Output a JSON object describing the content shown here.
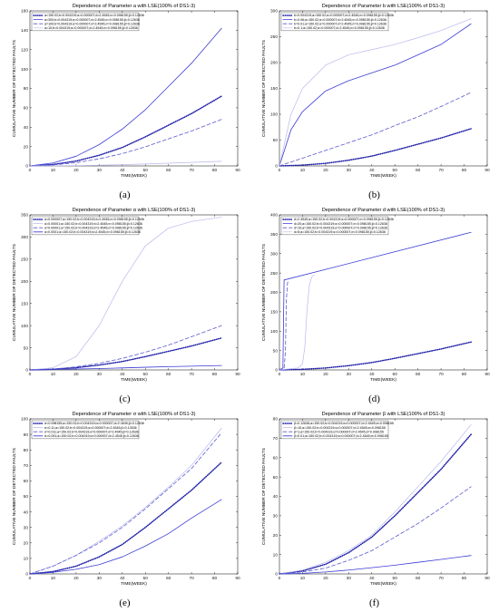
{
  "panels": [
    {
      "label": "(a)",
      "title": "Dependence of Parameter a with LSE(100% of DS1-3)"
    },
    {
      "label": "(b)",
      "title": "Dependence of Parameter b with LSE(100% of DS1-3)"
    },
    {
      "label": "(c)",
      "title": "Dependence of Parameter α with LSE(100% of DS1-3)"
    },
    {
      "label": "(d)",
      "title": "Dependence of Parameter d with LSE(100% of DS1-3)"
    },
    {
      "label": "(e)",
      "title": "Dependence of Parameter σ with LSE(100% of DS1-3)"
    },
    {
      "label": "(f)",
      "title": "Dependence of Parameter β with LSE(100% of DS1-3)"
    }
  ],
  "chart_data": [
    {
      "type": "line",
      "title": "Dependence of Parameter a with LSE(100% of DS1-3)",
      "xlabel": "TIME(WEEK)",
      "ylabel": "CUMULATIVE NUMBER OF DETECTED FAULTS",
      "xlim": [
        0,
        90
      ],
      "ylim": [
        0,
        160
      ],
      "xticks": [
        0,
        10,
        20,
        30,
        40,
        50,
        60,
        70,
        80,
        90
      ],
      "yticks": [
        0,
        20,
        40,
        60,
        80,
        100,
        120,
        140,
        160
      ],
      "legend_position": "top-left",
      "grid": false,
      "series": [
        {
          "name": "a=150.02;b=0.004319;α=0.000007;d=2.4545;σ=0.098155;β=0.12636",
          "style": "dotted",
          "color": "#1a1aa6",
          "x": [
            0,
            10,
            20,
            30,
            40,
            50,
            60,
            70,
            83
          ],
          "y": [
            0,
            1.5,
            5,
            11,
            19,
            30,
            42,
            54,
            72
          ]
        },
        {
          "name": "a=300;b=0.004319;α=0.000007;d=2.4545;σ=0.098155;β=0.12636",
          "style": "solid",
          "color": "#3b3bd6",
          "x": [
            0,
            10,
            20,
            30,
            40,
            50,
            60,
            70,
            83
          ],
          "y": [
            0,
            3,
            10,
            22,
            38,
            58,
            82,
            106,
            142
          ]
        },
        {
          "name": "a=100;b=0.004319;α=0.000007;d=2.4545;σ=0.098155;β=0.12636",
          "style": "dashed",
          "color": "#5a5ad0",
          "x": [
            0,
            10,
            20,
            30,
            40,
            50,
            60,
            70,
            83
          ],
          "y": [
            0,
            1,
            3.3,
            7.3,
            12.7,
            19.7,
            28,
            36,
            48
          ]
        },
        {
          "name": "a=10;b=0.004319;α=0.000007;d=2.4545;σ=0.098155;β=0.12636",
          "style": "faint",
          "color": "#b8b8ee",
          "x": [
            0,
            10,
            20,
            30,
            40,
            50,
            60,
            70,
            83
          ],
          "y": [
            0,
            0.1,
            0.3,
            0.7,
            1.3,
            2,
            2.8,
            3.6,
            4.8
          ]
        }
      ]
    },
    {
      "type": "line",
      "title": "Dependence of Parameter b with LSE(100% of DS1-3)",
      "xlabel": "TIME(WEEK)",
      "ylabel": "CUMULATIVE NUMBER OF DETECTED FAULTS",
      "xlim": [
        0,
        90
      ],
      "ylim": [
        0,
        300
      ],
      "xticks": [
        0,
        10,
        20,
        30,
        40,
        50,
        60,
        70,
        80,
        90
      ],
      "yticks": [
        0,
        50,
        100,
        150,
        200,
        250,
        300
      ],
      "legend_position": "top-left",
      "grid": false,
      "series": [
        {
          "name": "b=0.004319;a=150.02;α=0.000007;d=2.4545;σ=0.098155;β=0.12636",
          "style": "dotted",
          "color": "#1a1aa6",
          "x": [
            0,
            10,
            20,
            30,
            40,
            50,
            60,
            70,
            83
          ],
          "y": [
            0,
            1.5,
            5,
            11,
            19,
            30,
            42,
            54,
            72
          ]
        },
        {
          "name": "b=0.06;a=150.02;α=0.000007;d=2.4545;σ=0.098155;β=0.12636",
          "style": "solid",
          "color": "#3b3bd6",
          "x": [
            0,
            5,
            10,
            20,
            30,
            40,
            50,
            60,
            70,
            83
          ],
          "y": [
            0,
            70,
            105,
            145,
            165,
            180,
            195,
            215,
            235,
            275
          ]
        },
        {
          "name": "b=0.01;a=150.02;α=0.000007;d=2.4545;σ=0.098155;β=0.12636",
          "style": "dashed",
          "color": "#5a5ad0",
          "x": [
            0,
            10,
            20,
            30,
            40,
            50,
            60,
            70,
            83
          ],
          "y": [
            0,
            15,
            30,
            45,
            60,
            78,
            95,
            115,
            142
          ]
        },
        {
          "name": "b=0.1;a=150.02;α=0.000007;d=2.4545;σ=0.098155;β=0.12636",
          "style": "faint",
          "color": "#b8b8ee",
          "x": [
            0,
            5,
            10,
            20,
            30,
            40,
            50,
            60,
            70,
            83
          ],
          "y": [
            0,
            100,
            150,
            195,
            215,
            225,
            235,
            248,
            262,
            285
          ]
        }
      ]
    },
    {
      "type": "line",
      "title": "Dependence of Parameter α with LSE(100% of DS1-3)",
      "xlabel": "TIME(WEEK)",
      "ylabel": "CUMULATIVE NUMBER OF DETECTED FAULTS",
      "xlim": [
        0,
        90
      ],
      "ylim": [
        0,
        350
      ],
      "xticks": [
        0,
        10,
        20,
        30,
        40,
        50,
        60,
        70,
        80,
        90
      ],
      "yticks": [
        0,
        50,
        100,
        150,
        200,
        250,
        300,
        350
      ],
      "legend_position": "top-left",
      "grid": false,
      "series": [
        {
          "name": "α=0.000007;a=150.02;b=0.004319;d=2.4545;σ=0.098155;β=0.12636",
          "style": "dotted",
          "color": "#1a1aa6",
          "x": [
            0,
            10,
            20,
            30,
            40,
            50,
            60,
            70,
            83
          ],
          "y": [
            0,
            1.5,
            5,
            11,
            19,
            30,
            42,
            54,
            72
          ]
        },
        {
          "name": "α=0.00001;a=150.02;b=0.004319;d=2.4545;σ=0.098155;β=0.12636",
          "style": "faint",
          "color": "#b8b8ee",
          "x": [
            0,
            10,
            20,
            30,
            40,
            50,
            60,
            70,
            83
          ],
          "y": [
            0,
            5,
            30,
            100,
            200,
            280,
            320,
            335,
            345
          ]
        },
        {
          "name": "α=0.00001;a=150.02;b=0.004319;d=2.4545;σ=0.098155;β=0.12636",
          "style": "dashed",
          "color": "#5a5ad0",
          "x": [
            0,
            10,
            20,
            30,
            40,
            50,
            60,
            70,
            83
          ],
          "y": [
            0,
            2,
            7,
            15,
            26,
            40,
            56,
            75,
            100
          ]
        },
        {
          "name": "α=0.0001;a=150.02;b=0.004319;d=2.4545;σ=0.098155;β=0.12636",
          "style": "solid",
          "color": "#3b3bd6",
          "x": [
            0,
            10,
            20,
            30,
            40,
            50,
            60,
            70,
            83
          ],
          "y": [
            0,
            1,
            2,
            3,
            4.5,
            6,
            7.5,
            8.5,
            10
          ]
        }
      ]
    },
    {
      "type": "line",
      "title": "Dependence of Parameter d with LSE(100% of DS1-3)",
      "xlabel": "TIME(WEEK)",
      "ylabel": "CUMULATIVE NUMBER OF DETECTED FAULTS",
      "xlim": [
        0,
        90
      ],
      "ylim": [
        0,
        400
      ],
      "xticks": [
        0,
        10,
        20,
        30,
        40,
        50,
        60,
        70,
        80,
        90
      ],
      "yticks": [
        0,
        50,
        100,
        150,
        200,
        250,
        300,
        350,
        400
      ],
      "legend_position": "top-left",
      "grid": false,
      "series": [
        {
          "name": "d=2.4545;a=150.02;b=0.004319;α=0.000007;σ=0.098155;β=0.12636",
          "style": "dotted",
          "color": "#1a1aa6",
          "x": [
            0,
            10,
            20,
            30,
            40,
            50,
            60,
            70,
            83
          ],
          "y": [
            0,
            1.5,
            5,
            11,
            19,
            30,
            42,
            54,
            72
          ]
        },
        {
          "name": "d=20;a=150.02;b=0.004319;α=0.000007;σ=0.098155;β=0.12636",
          "style": "solid",
          "color": "#3b3bd6",
          "x": [
            0,
            1.5,
            2,
            83
          ],
          "y": [
            0,
            5,
            232,
            355
          ]
        },
        {
          "name": "d=10;a=150.02;b=0.004319;α=0.000007;σ=0.098155;β=0.12636",
          "style": "dashed",
          "color": "#5a5ad0",
          "x": [
            0,
            2,
            2.6,
            3,
            3.5,
            4
          ],
          "y": [
            0,
            2,
            50,
            180,
            225,
            230
          ]
        },
        {
          "name": "d=5;a=150.02;b=0.004319;α=0.000007;σ=0.098155;β=0.12636",
          "style": "faint",
          "color": "#b8b8ee",
          "x": [
            0,
            8,
            10,
            11,
            12,
            13,
            14,
            15
          ],
          "y": [
            0,
            5,
            15,
            60,
            160,
            220,
            240,
            245
          ]
        }
      ]
    },
    {
      "type": "line",
      "title": "Dependence of Parameter σ with LSE(100% of DS1-3)",
      "xlabel": "TIME(WEEK)",
      "ylabel": "CUMULATIVE NUMBER OF DETECTED FAULTS",
      "xlim": [
        0,
        90
      ],
      "ylim": [
        0,
        100
      ],
      "xticks": [
        0,
        10,
        20,
        30,
        40,
        50,
        60,
        70,
        80,
        90
      ],
      "yticks": [
        0,
        10,
        20,
        30,
        40,
        50,
        60,
        70,
        80,
        90,
        100
      ],
      "legend_position": "top-left",
      "grid": false,
      "series": [
        {
          "name": "σ=0.098155;a=150.02;b=0.004319;α=0.000007;d=2.4545;β=0.12636",
          "style": "dotted",
          "color": "#1a1aa6",
          "x": [
            0,
            10,
            20,
            30,
            40,
            50,
            60,
            70,
            83
          ],
          "y": [
            0,
            1.5,
            5,
            11,
            19,
            30,
            42,
            54,
            72
          ]
        },
        {
          "name": "σ=0.11;a=150.02;b=0.004319;α=0.000007;d=2.4545;β=0.12636",
          "style": "faint",
          "color": "#b8b8ee",
          "x": [
            0,
            10,
            20,
            30,
            40,
            50,
            60,
            70,
            83
          ],
          "y": [
            0,
            5,
            12,
            21,
            31,
            43,
            56,
            70,
            94
          ]
        },
        {
          "name": "σ=0.011;a=150.02;b=0.004319;α=0.000007;d=2.4545;β=0.12636",
          "style": "dashed",
          "color": "#5a5ad0",
          "x": [
            0,
            10,
            20,
            30,
            40,
            50,
            60,
            70,
            83
          ],
          "y": [
            0,
            5,
            12,
            20,
            30,
            42,
            55,
            68,
            91
          ]
        },
        {
          "name": "σ=0.051;a=150.02;b=0.004319;α=0.000007;d=2.4545;β=0.12636",
          "style": "solid",
          "color": "#3b3bd6",
          "x": [
            0,
            10,
            20,
            30,
            40,
            50,
            60,
            70,
            83
          ],
          "y": [
            0,
            1,
            3,
            6,
            11,
            18,
            26,
            36,
            48
          ]
        }
      ]
    },
    {
      "type": "line",
      "title": "Dependence of Parameter β with LSE(100% of DS1-3)",
      "xlabel": "TIME(WEEK)",
      "ylabel": "CUMULATIVE NUMBER OF DETECTED FAULTS",
      "xlim": [
        0,
        90
      ],
      "ylim": [
        0,
        80
      ],
      "xticks": [
        0,
        10,
        20,
        30,
        40,
        50,
        60,
        70,
        80,
        90
      ],
      "yticks": [
        0,
        10,
        20,
        30,
        40,
        50,
        60,
        70,
        80
      ],
      "legend_position": "top-left",
      "grid": false,
      "series": [
        {
          "name": "β=0.12636;a=150.02;b=0.004319;α=0.000007;d=2.4545;σ=0.098155",
          "style": "dotted",
          "color": "#1a1aa6",
          "x": [
            0,
            10,
            20,
            30,
            40,
            50,
            60,
            70,
            83
          ],
          "y": [
            0,
            1.5,
            5,
            11,
            19,
            30,
            42,
            54,
            72
          ]
        },
        {
          "name": "β=10;a=150.02;b=0.004319;α=0.000007;d=2.4545;σ=0.098155",
          "style": "faint",
          "color": "#b8b8ee",
          "x": [
            0,
            10,
            20,
            30,
            40,
            50,
            60,
            70,
            83
          ],
          "y": [
            0,
            2,
            6,
            12,
            20,
            32,
            45,
            58,
            77
          ]
        },
        {
          "name": "β=1;a=150.02;b=0.004319;α=0.000007;d=2.4545;σ=0.098155",
          "style": "dashed",
          "color": "#5a5ad0",
          "x": [
            0,
            10,
            20,
            30,
            40,
            50,
            60,
            70,
            83
          ],
          "y": [
            0,
            1,
            3,
            7,
            12,
            19,
            26,
            34,
            45
          ]
        },
        {
          "name": "β=0.01;a=150.02;b=0.004319;α=0.000007;d=2.4545;σ=0.098155",
          "style": "solid",
          "color": "#3b3bd6",
          "x": [
            0,
            10,
            20,
            30,
            40,
            50,
            60,
            70,
            83
          ],
          "y": [
            0,
            0.3,
            1,
            2,
            3.2,
            4.5,
            6,
            7.5,
            9.5
          ]
        }
      ]
    }
  ]
}
